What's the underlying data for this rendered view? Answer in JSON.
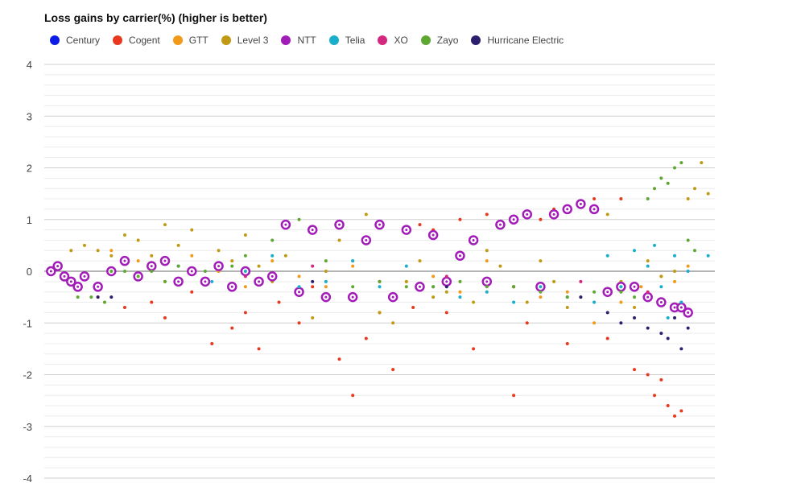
{
  "chart_data": {
    "type": "scatter",
    "title": "Loss gains by carrier(%) (higher is better)",
    "xlabel": "",
    "ylabel": "",
    "ylim": [
      -4,
      4
    ],
    "y_ticks": [
      "4",
      "3",
      "2",
      "1",
      "0",
      "-1",
      "-2",
      "-3",
      "-4"
    ],
    "grid": true,
    "legend_position": "top-left",
    "series": [
      {
        "name": "Century",
        "color": "#0d1be6",
        "points": []
      },
      {
        "name": "Cogent",
        "color": "#e8391f",
        "points": [
          [
            5,
            -0.3
          ],
          [
            8,
            -0.5
          ],
          [
            12,
            -0.7
          ],
          [
            16,
            -0.6
          ],
          [
            18,
            -0.9
          ],
          [
            22,
            -0.4
          ],
          [
            25,
            -1.4
          ],
          [
            28,
            -1.1
          ],
          [
            30,
            -0.8
          ],
          [
            32,
            -1.5
          ],
          [
            35,
            -0.6
          ],
          [
            38,
            -1.0
          ],
          [
            40,
            -0.3
          ],
          [
            44,
            -1.7
          ],
          [
            46,
            -2.4
          ],
          [
            48,
            -1.3
          ],
          [
            50,
            -0.8
          ],
          [
            52,
            -1.9
          ],
          [
            55,
            -0.7
          ],
          [
            56,
            0.9
          ],
          [
            58,
            0.8
          ],
          [
            60,
            -0.8
          ],
          [
            62,
            1.0
          ],
          [
            64,
            -1.5
          ],
          [
            66,
            1.1
          ],
          [
            68,
            0.9
          ],
          [
            70,
            -2.4
          ],
          [
            72,
            -1.0
          ],
          [
            74,
            1.0
          ],
          [
            76,
            1.2
          ],
          [
            78,
            -1.4
          ],
          [
            80,
            1.3
          ],
          [
            82,
            1.4
          ],
          [
            84,
            -1.3
          ],
          [
            86,
            1.4
          ],
          [
            88,
            -1.9
          ],
          [
            90,
            -2.0
          ],
          [
            91,
            -2.4
          ],
          [
            92,
            -2.1
          ],
          [
            93,
            -2.6
          ],
          [
            94,
            -2.8
          ],
          [
            95,
            -2.7
          ]
        ]
      },
      {
        "name": "GTT",
        "color": "#f29a18",
        "points": [
          [
            10,
            0.4
          ],
          [
            14,
            0.2
          ],
          [
            18,
            -0.2
          ],
          [
            22,
            0.3
          ],
          [
            26,
            0.0
          ],
          [
            30,
            -0.3
          ],
          [
            34,
            0.2
          ],
          [
            38,
            -0.1
          ],
          [
            42,
            -0.3
          ],
          [
            46,
            0.1
          ],
          [
            50,
            -0.2
          ],
          [
            54,
            -0.2
          ],
          [
            58,
            -0.1
          ],
          [
            62,
            -0.4
          ],
          [
            66,
            0.2
          ],
          [
            70,
            -0.3
          ],
          [
            74,
            -0.5
          ],
          [
            78,
            -0.4
          ],
          [
            82,
            -1.0
          ],
          [
            86,
            -0.6
          ],
          [
            89,
            -0.3
          ],
          [
            92,
            -0.1
          ],
          [
            94,
            -0.2
          ],
          [
            96,
            0.1
          ]
        ]
      },
      {
        "name": "Level 3",
        "color": "#c19a13",
        "points": [
          [
            4,
            0.4
          ],
          [
            6,
            0.5
          ],
          [
            8,
            0.4
          ],
          [
            10,
            0.3
          ],
          [
            12,
            0.7
          ],
          [
            14,
            0.6
          ],
          [
            16,
            0.3
          ],
          [
            18,
            0.9
          ],
          [
            20,
            0.5
          ],
          [
            22,
            0.8
          ],
          [
            26,
            0.4
          ],
          [
            28,
            0.2
          ],
          [
            30,
            0.7
          ],
          [
            32,
            0.1
          ],
          [
            34,
            -0.2
          ],
          [
            36,
            0.3
          ],
          [
            38,
            -0.4
          ],
          [
            40,
            -0.9
          ],
          [
            42,
            0.0
          ],
          [
            44,
            0.6
          ],
          [
            46,
            0.2
          ],
          [
            48,
            1.1
          ],
          [
            50,
            -0.8
          ],
          [
            52,
            -1.0
          ],
          [
            54,
            -0.2
          ],
          [
            56,
            0.2
          ],
          [
            58,
            -0.5
          ],
          [
            60,
            -0.4
          ],
          [
            62,
            0.3
          ],
          [
            64,
            -0.6
          ],
          [
            66,
            0.4
          ],
          [
            68,
            0.1
          ],
          [
            70,
            -0.3
          ],
          [
            72,
            -0.6
          ],
          [
            74,
            0.2
          ],
          [
            76,
            -0.2
          ],
          [
            78,
            -0.7
          ],
          [
            80,
            -0.5
          ],
          [
            82,
            1.2
          ],
          [
            84,
            1.1
          ],
          [
            86,
            -0.2
          ],
          [
            88,
            -0.7
          ],
          [
            90,
            0.2
          ],
          [
            92,
            -0.1
          ],
          [
            94,
            0.0
          ],
          [
            96,
            1.4
          ],
          [
            97,
            1.6
          ],
          [
            98,
            2.1
          ],
          [
            99,
            1.5
          ]
        ]
      },
      {
        "name": "NTT",
        "color": "#a21cb8",
        "points": [
          [
            1,
            0.0
          ],
          [
            2,
            0.1
          ],
          [
            3,
            -0.1
          ],
          [
            4,
            -0.2
          ],
          [
            5,
            -0.3
          ],
          [
            6,
            -0.1
          ],
          [
            8,
            -0.3
          ],
          [
            10,
            0.0
          ],
          [
            12,
            0.2
          ],
          [
            14,
            -0.1
          ],
          [
            16,
            0.1
          ],
          [
            18,
            0.2
          ],
          [
            20,
            -0.2
          ],
          [
            22,
            0.0
          ],
          [
            24,
            -0.2
          ],
          [
            26,
            0.1
          ],
          [
            28,
            -0.3
          ],
          [
            30,
            0.0
          ],
          [
            32,
            -0.2
          ],
          [
            34,
            -0.1
          ],
          [
            36,
            0.9
          ],
          [
            38,
            -0.4
          ],
          [
            40,
            0.8
          ],
          [
            42,
            -0.5
          ],
          [
            44,
            0.9
          ],
          [
            46,
            -0.5
          ],
          [
            48,
            0.6
          ],
          [
            50,
            0.9
          ],
          [
            52,
            -0.5
          ],
          [
            54,
            0.8
          ],
          [
            56,
            -0.3
          ],
          [
            58,
            0.7
          ],
          [
            60,
            -0.2
          ],
          [
            62,
            0.3
          ],
          [
            64,
            0.6
          ],
          [
            66,
            -0.2
          ],
          [
            68,
            0.9
          ],
          [
            70,
            1.0
          ],
          [
            72,
            1.1
          ],
          [
            74,
            -0.3
          ],
          [
            76,
            1.1
          ],
          [
            78,
            1.2
          ],
          [
            80,
            1.3
          ],
          [
            82,
            1.2
          ],
          [
            84,
            -0.4
          ],
          [
            86,
            -0.3
          ],
          [
            88,
            -0.3
          ],
          [
            90,
            -0.5
          ],
          [
            92,
            -0.6
          ],
          [
            94,
            -0.7
          ],
          [
            95,
            -0.7
          ],
          [
            96,
            -0.8
          ]
        ]
      },
      {
        "name": "Telia",
        "color": "#19aecb",
        "points": [
          [
            20,
            0.1
          ],
          [
            25,
            -0.2
          ],
          [
            30,
            0.0
          ],
          [
            34,
            0.3
          ],
          [
            38,
            -0.3
          ],
          [
            42,
            -0.2
          ],
          [
            46,
            0.2
          ],
          [
            50,
            -0.3
          ],
          [
            54,
            0.1
          ],
          [
            58,
            -0.3
          ],
          [
            62,
            -0.5
          ],
          [
            66,
            -0.4
          ],
          [
            70,
            -0.6
          ],
          [
            74,
            -0.3
          ],
          [
            78,
            -0.5
          ],
          [
            82,
            -0.6
          ],
          [
            84,
            0.3
          ],
          [
            86,
            -0.3
          ],
          [
            88,
            0.4
          ],
          [
            90,
            0.1
          ],
          [
            91,
            0.5
          ],
          [
            92,
            -0.3
          ],
          [
            93,
            -0.9
          ],
          [
            94,
            0.3
          ],
          [
            95,
            -0.6
          ],
          [
            96,
            0.0
          ],
          [
            99,
            0.3
          ]
        ]
      },
      {
        "name": "XO",
        "color": "#d4277f",
        "points": [
          [
            30,
            -0.1
          ],
          [
            40,
            0.1
          ],
          [
            50,
            -0.2
          ],
          [
            60,
            -0.1
          ],
          [
            70,
            -0.3
          ],
          [
            80,
            -0.2
          ],
          [
            90,
            -0.4
          ]
        ]
      },
      {
        "name": "Zayo",
        "color": "#5ea832",
        "points": [
          [
            5,
            -0.5
          ],
          [
            7,
            -0.5
          ],
          [
            9,
            -0.6
          ],
          [
            10,
            0.0
          ],
          [
            12,
            0.0
          ],
          [
            14,
            -0.1
          ],
          [
            16,
            0.0
          ],
          [
            18,
            -0.2
          ],
          [
            20,
            0.1
          ],
          [
            24,
            0.0
          ],
          [
            28,
            0.1
          ],
          [
            30,
            0.3
          ],
          [
            34,
            0.6
          ],
          [
            38,
            1.0
          ],
          [
            42,
            0.2
          ],
          [
            46,
            -0.3
          ],
          [
            50,
            -0.2
          ],
          [
            54,
            -0.3
          ],
          [
            58,
            -0.3
          ],
          [
            62,
            -0.2
          ],
          [
            66,
            -0.3
          ],
          [
            70,
            -0.3
          ],
          [
            74,
            -0.4
          ],
          [
            78,
            -0.5
          ],
          [
            82,
            -0.4
          ],
          [
            86,
            -0.4
          ],
          [
            88,
            -0.5
          ],
          [
            90,
            1.4
          ],
          [
            91,
            1.6
          ],
          [
            92,
            1.8
          ],
          [
            93,
            1.7
          ],
          [
            94,
            2.0
          ],
          [
            95,
            2.1
          ],
          [
            96,
            0.6
          ],
          [
            97,
            0.4
          ]
        ]
      },
      {
        "name": "Hurricane Electric",
        "color": "#2e1f6e",
        "points": [
          [
            8,
            -0.5
          ],
          [
            10,
            -0.5
          ],
          [
            40,
            -0.2
          ],
          [
            60,
            -0.3
          ],
          [
            80,
            -0.5
          ],
          [
            84,
            -0.8
          ],
          [
            86,
            -1.0
          ],
          [
            88,
            -0.9
          ],
          [
            90,
            -1.1
          ],
          [
            92,
            -1.2
          ],
          [
            93,
            -1.3
          ],
          [
            94,
            -0.9
          ],
          [
            95,
            -1.5
          ],
          [
            96,
            -1.1
          ]
        ]
      }
    ],
    "highlighted_series": "NTT"
  }
}
